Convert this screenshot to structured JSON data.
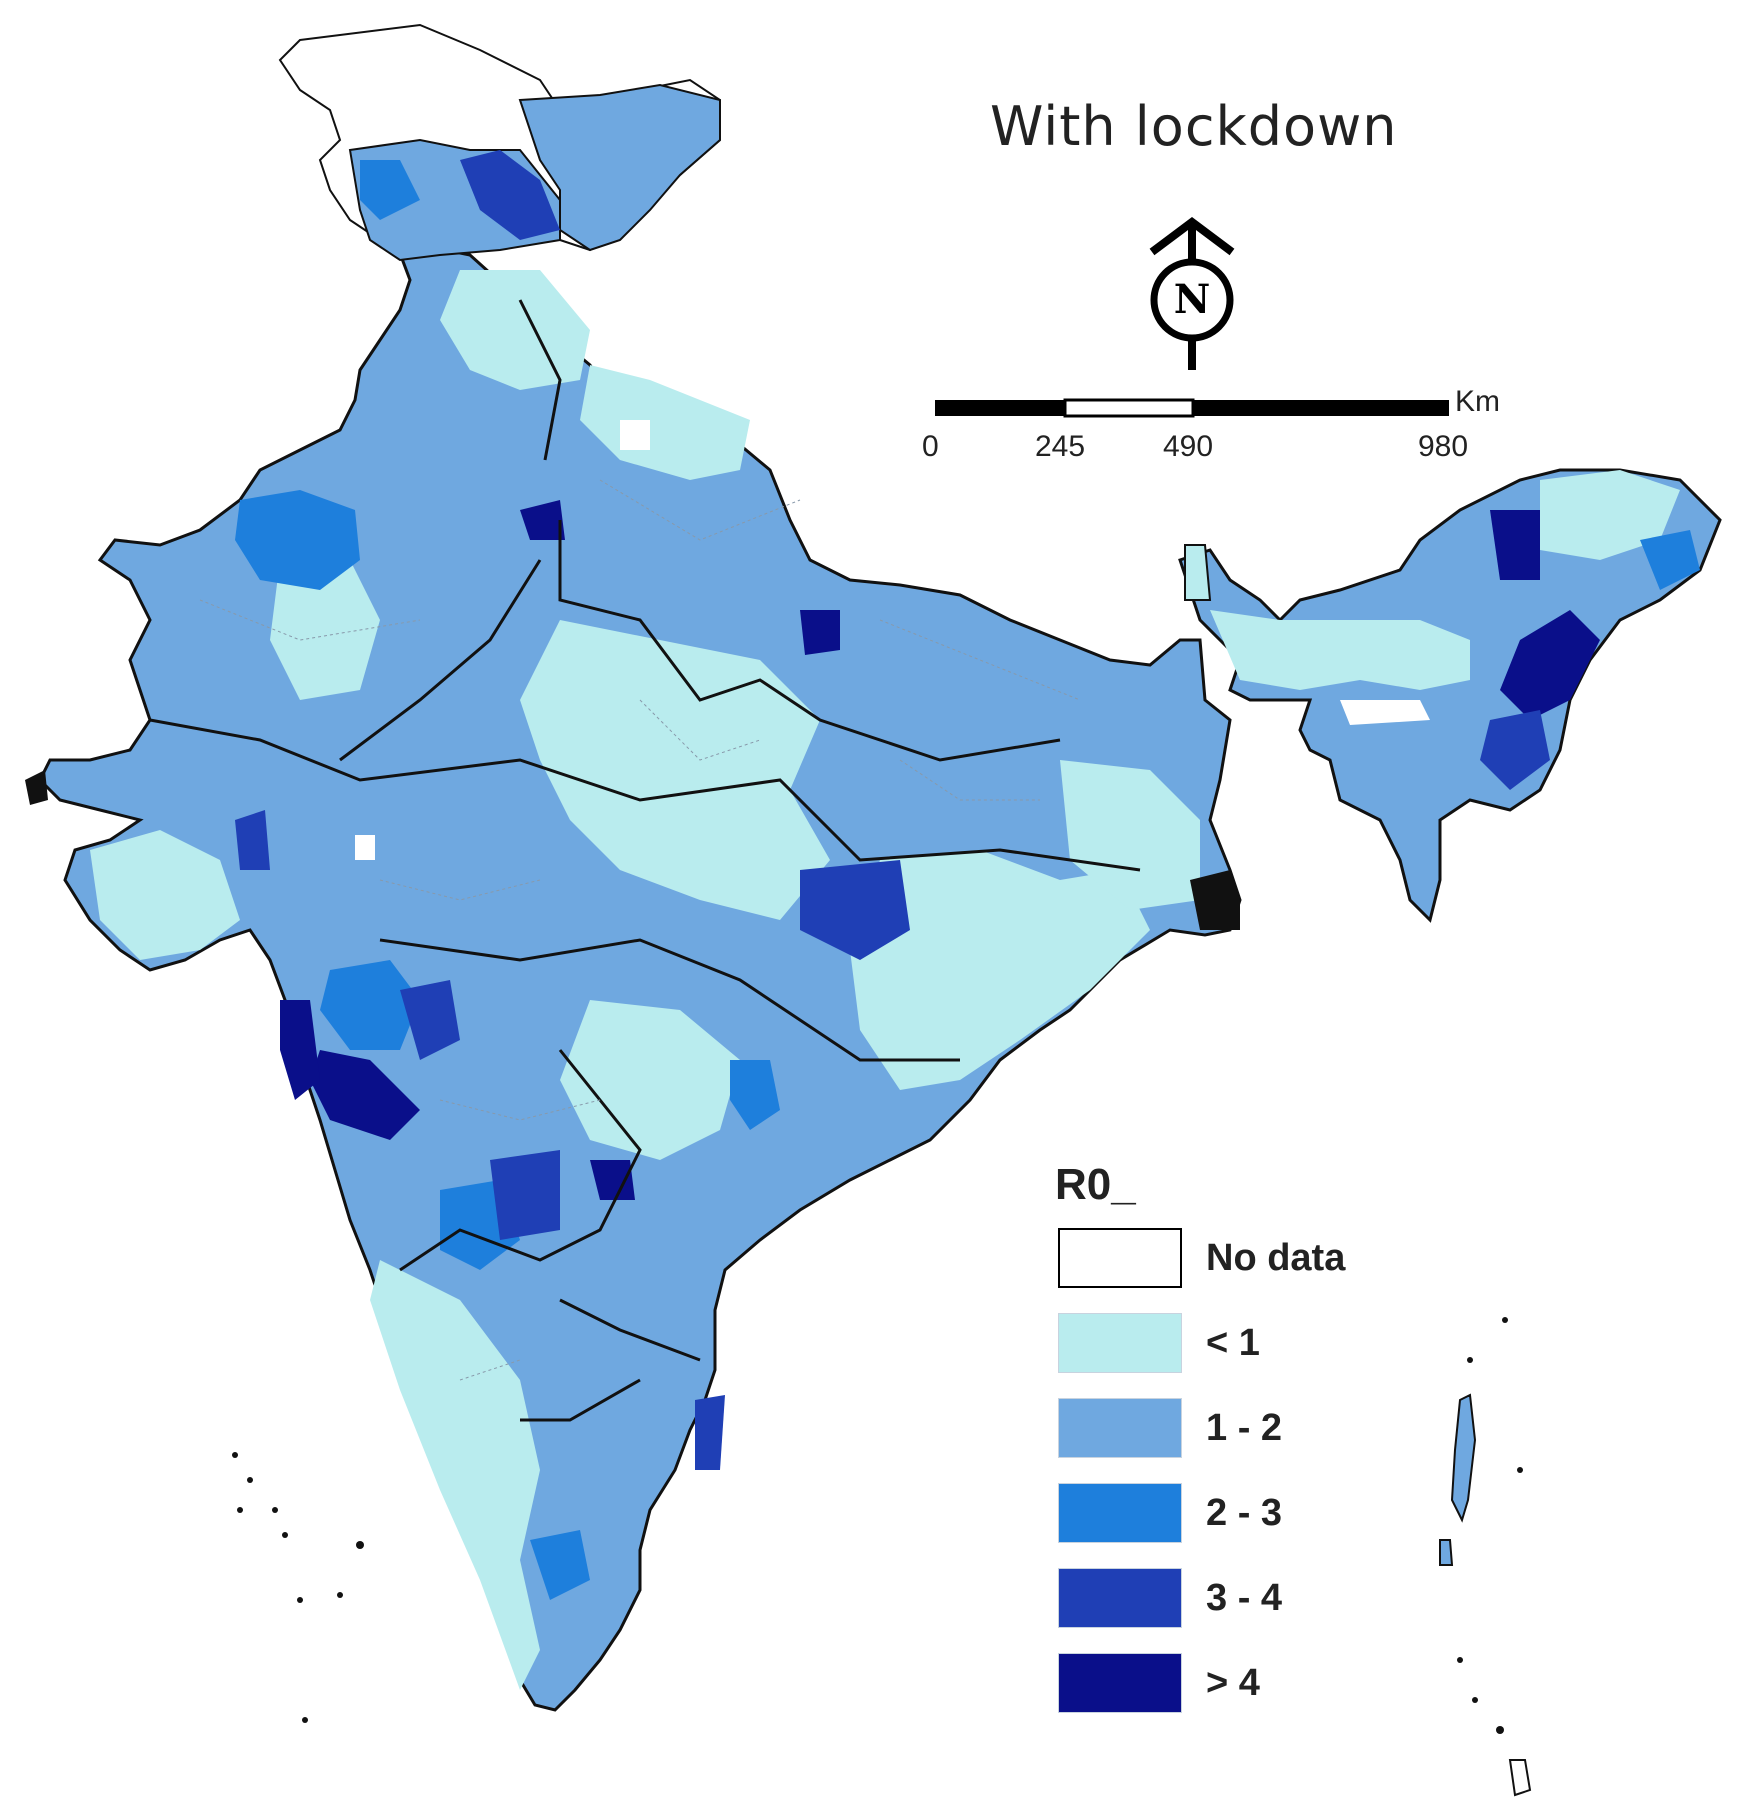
{
  "title": "With lockdown",
  "scale_bar": {
    "ticks": [
      "0",
      "245",
      "490",
      "980"
    ],
    "unit": "Km"
  },
  "north_arrow": {
    "letter": "N",
    "icon": "north-arrow-icon"
  },
  "legend": {
    "title": "R0_",
    "items": [
      {
        "label": "No data",
        "color": "#ffffff"
      },
      {
        "label": "< 1",
        "color": "#b9ecee"
      },
      {
        "label": "1 - 2",
        "color": "#6fa8e0"
      },
      {
        "label": "2 - 3",
        "color": "#1e7fdc"
      },
      {
        "label": "3 - 4",
        "color": "#1f3fb5"
      },
      {
        "label": "> 4",
        "color": "#0a0f8a"
      }
    ]
  }
}
